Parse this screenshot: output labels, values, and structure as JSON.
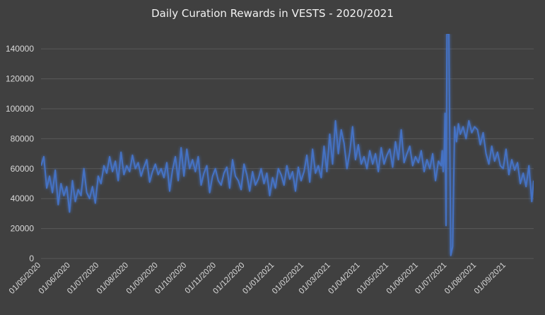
{
  "chart_data": {
    "type": "line",
    "title": "Daily Curation Rewards in VESTS - 2020/2021",
    "xlabel": "",
    "ylabel": "",
    "ylim": [
      0,
      150000
    ],
    "yticks": [
      0,
      20000,
      40000,
      60000,
      80000,
      100000,
      120000,
      140000
    ],
    "ytick_labels": [
      "0",
      "20000",
      "40000",
      "60000",
      "80000",
      "100000",
      "120000",
      "140000"
    ],
    "xlim": [
      "2020-05-01",
      "2021-09-30"
    ],
    "xticks": [
      "2020-05-01",
      "2020-06-01",
      "2020-07-01",
      "2020-08-01",
      "2020-09-01",
      "2020-10-01",
      "2020-11-01",
      "2020-12-01",
      "2021-01-01",
      "2021-02-01",
      "2021-03-01",
      "2021-04-01",
      "2021-05-01",
      "2021-06-01",
      "2021-07-01",
      "2021-08-01",
      "2021-09-01"
    ],
    "xtick_labels": [
      "01/05/2020",
      "01/06/2020",
      "01/07/2020",
      "01/08/2020",
      "01/09/2020",
      "01/10/2020",
      "01/11/2020",
      "01/12/2020",
      "01/01/2021",
      "01/02/2021",
      "01/03/2021",
      "01/04/2021",
      "01/05/2021",
      "01/06/2021",
      "01/07/2021",
      "01/08/2021",
      "01/09/2021"
    ],
    "grid": true,
    "legend": false,
    "colors": {
      "background": "#404040",
      "grid": "#595959",
      "line": "#4472c4",
      "glow": "#6a9ae8",
      "text": "#d9d9d9"
    },
    "series": [
      {
        "x": [
          "2020-05-01",
          "2020-05-04",
          "2020-05-07",
          "2020-05-10",
          "2020-05-13",
          "2020-05-16",
          "2020-05-19",
          "2020-05-22",
          "2020-05-25",
          "2020-05-28",
          "2020-05-31",
          "2020-06-03",
          "2020-06-06",
          "2020-06-09",
          "2020-06-12",
          "2020-06-15",
          "2020-06-18",
          "2020-06-21",
          "2020-06-24",
          "2020-06-27",
          "2020-06-30",
          "2020-07-03",
          "2020-07-06",
          "2020-07-09",
          "2020-07-12",
          "2020-07-15",
          "2020-07-18",
          "2020-07-21",
          "2020-07-24",
          "2020-07-27",
          "2020-07-30",
          "2020-08-02",
          "2020-08-05",
          "2020-08-08",
          "2020-08-11",
          "2020-08-14",
          "2020-08-17",
          "2020-08-20",
          "2020-08-23",
          "2020-08-26",
          "2020-08-29",
          "2020-09-01",
          "2020-09-04",
          "2020-09-07",
          "2020-09-10",
          "2020-09-13",
          "2020-09-16",
          "2020-09-19",
          "2020-09-22",
          "2020-09-25",
          "2020-09-28",
          "2020-10-01",
          "2020-10-04",
          "2020-10-07",
          "2020-10-10",
          "2020-10-13",
          "2020-10-16",
          "2020-10-19",
          "2020-10-22",
          "2020-10-25",
          "2020-10-28",
          "2020-10-31",
          "2020-11-03",
          "2020-11-06",
          "2020-11-09",
          "2020-11-12",
          "2020-11-15",
          "2020-11-18",
          "2020-11-21",
          "2020-11-24",
          "2020-11-27",
          "2020-11-30",
          "2020-12-03",
          "2020-12-06",
          "2020-12-09",
          "2020-12-12",
          "2020-12-15",
          "2020-12-18",
          "2020-12-21",
          "2020-12-24",
          "2020-12-27",
          "2020-12-30",
          "2021-01-02",
          "2021-01-05",
          "2021-01-08",
          "2021-01-11",
          "2021-01-14",
          "2021-01-17",
          "2021-01-20",
          "2021-01-23",
          "2021-01-26",
          "2021-01-29",
          "2021-02-01",
          "2021-02-04",
          "2021-02-07",
          "2021-02-10",
          "2021-02-13",
          "2021-02-16",
          "2021-02-19",
          "2021-02-22",
          "2021-02-25",
          "2021-02-28",
          "2021-03-03",
          "2021-03-06",
          "2021-03-09",
          "2021-03-12",
          "2021-03-15",
          "2021-03-18",
          "2021-03-21",
          "2021-03-24",
          "2021-03-27",
          "2021-03-30",
          "2021-04-02",
          "2021-04-05",
          "2021-04-08",
          "2021-04-11",
          "2021-04-14",
          "2021-04-17",
          "2021-04-20",
          "2021-04-23",
          "2021-04-26",
          "2021-04-29",
          "2021-05-02",
          "2021-05-05",
          "2021-05-08",
          "2021-05-11",
          "2021-05-14",
          "2021-05-17",
          "2021-05-20",
          "2021-05-23",
          "2021-05-26",
          "2021-05-29",
          "2021-06-01",
          "2021-06-04",
          "2021-06-07",
          "2021-06-10",
          "2021-06-13",
          "2021-06-16",
          "2021-06-19",
          "2021-06-22",
          "2021-06-25",
          "2021-06-26",
          "2021-06-27",
          "2021-06-28",
          "2021-06-29",
          "2021-06-30",
          "2021-07-01",
          "2021-07-02",
          "2021-07-03",
          "2021-07-05",
          "2021-07-07",
          "2021-07-09",
          "2021-07-11",
          "2021-07-13",
          "2021-07-15",
          "2021-07-18",
          "2021-07-21",
          "2021-07-24",
          "2021-07-27",
          "2021-07-30",
          "2021-08-02",
          "2021-08-05",
          "2021-08-08",
          "2021-08-11",
          "2021-08-14",
          "2021-08-17",
          "2021-08-20",
          "2021-08-23",
          "2021-08-26",
          "2021-08-29",
          "2021-09-01",
          "2021-09-04",
          "2021-09-07",
          "2021-09-10",
          "2021-09-13",
          "2021-09-16",
          "2021-09-19",
          "2021-09-22",
          "2021-09-25",
          "2021-09-28",
          "2021-09-30"
        ],
        "y": [
          62000,
          68000,
          47000,
          55000,
          44000,
          59000,
          36000,
          50000,
          42000,
          48000,
          31000,
          52000,
          38000,
          46000,
          42000,
          60000,
          44000,
          40000,
          48000,
          37000,
          55000,
          50000,
          62000,
          57000,
          68000,
          58000,
          65000,
          52000,
          71000,
          56000,
          62000,
          58000,
          69000,
          60000,
          64000,
          55000,
          61000,
          66000,
          51000,
          58000,
          63000,
          56000,
          60000,
          54000,
          64000,
          45000,
          59000,
          68000,
          52000,
          74000,
          55000,
          73000,
          60000,
          66000,
          58000,
          68000,
          49000,
          57000,
          62000,
          44000,
          55000,
          60000,
          52000,
          49000,
          57000,
          61000,
          47000,
          66000,
          55000,
          52000,
          46000,
          63000,
          56000,
          45000,
          58000,
          49000,
          53000,
          60000,
          50000,
          57000,
          42000,
          54000,
          47000,
          60000,
          56000,
          49000,
          62000,
          53000,
          58000,
          45000,
          61000,
          52000,
          58000,
          69000,
          51000,
          73000,
          57000,
          62000,
          54000,
          75000,
          58000,
          83000,
          63000,
          92000,
          70000,
          86000,
          77000,
          60000,
          71000,
          88000,
          66000,
          76000,
          63000,
          68000,
          60000,
          72000,
          63000,
          70000,
          58000,
          74000,
          63000,
          69000,
          73000,
          61000,
          78000,
          66000,
          86000,
          64000,
          70000,
          75000,
          62000,
          68000,
          64000,
          72000,
          58000,
          66000,
          60000,
          70000,
          52000,
          65000,
          62000,
          72000,
          58000,
          67000,
          97000,
          22000,
          150000,
          150000,
          150000,
          2000,
          8000,
          88000,
          78000,
          90000,
          83000,
          88000,
          80000,
          92000,
          84000,
          88000,
          86000,
          76000,
          84000,
          70000,
          63000,
          75000,
          65000,
          71000,
          62000,
          60000,
          73000,
          56000,
          66000,
          59000,
          64000,
          50000,
          57000,
          48000,
          62000,
          38000,
          52000
        ]
      }
    ]
  }
}
